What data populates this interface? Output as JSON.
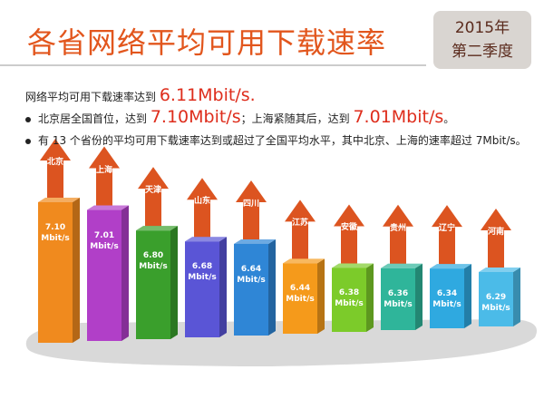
{
  "header": {
    "title": "各省网络平均可用下载速率",
    "badge": "2015年\n第二季度"
  },
  "summary": {
    "line1": [
      "网络平均可用下载速率达到 ",
      "6.11Mbit/s."
    ],
    "line2": [
      "北京居全国首位，达到 ",
      "7.10Mbit/s",
      "；上海紧随其后，达到 ",
      "7.01Mbit/s",
      "。"
    ],
    "line3": "有 13 个省份的平均可用下载速率达到或超过了全国平均水平，其中北京、上海的速率超过 7Mbit/s。"
  },
  "chart_data": {
    "type": "bar3d",
    "categories": [
      "北京",
      "上海",
      "天津",
      "山东",
      "四川",
      "江苏",
      "安徽",
      "贵州",
      "辽宁",
      "河南"
    ],
    "values": [
      7.1,
      7.01,
      6.8,
      6.68,
      6.64,
      6.44,
      6.38,
      6.36,
      6.34,
      6.29
    ],
    "value_labels": [
      "7.10\nMbit/s",
      "7.01\nMbit/s",
      "6.80\nMbit/s",
      "6.68\nMbit/s",
      "6.64\nMbit/s",
      "6.44\nMbit/s",
      "6.38\nMbit/s",
      "6.36\nMbit/s",
      "6.34\nMbit/s",
      "6.29\nMbit/s"
    ],
    "colors": [
      "#f08a1e",
      "#b13fc8",
      "#3a9f2c",
      "#5a55d6",
      "#2f86d6",
      "#f59a1b",
      "#7ccb2a",
      "#2fb59a",
      "#2fa9e0",
      "#4bbbe8"
    ],
    "arrow_color": "#dc5420"
  }
}
